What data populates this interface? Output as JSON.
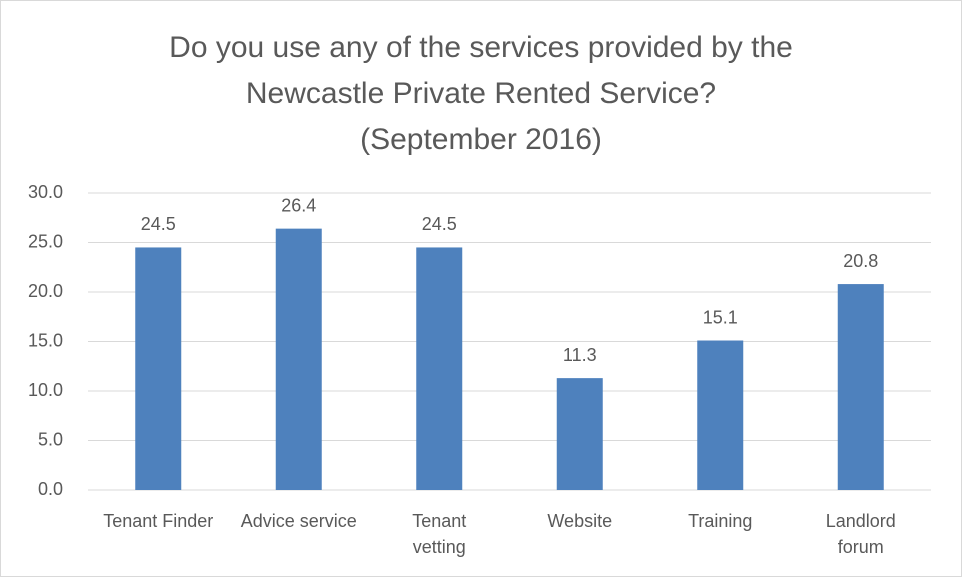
{
  "chart_data": {
    "type": "bar",
    "title": [
      "Do you use any of the services provided by the",
      "Newcastle Private Rented Service?",
      "(September 2016)"
    ],
    "categories": [
      "Tenant Finder",
      "Advice service",
      "Tenant vetting",
      "Website",
      "Training",
      "Landlord forum"
    ],
    "values": [
      24.5,
      26.4,
      24.5,
      11.3,
      15.1,
      20.8
    ],
    "color": "#4e81bd",
    "ylim": [
      0,
      30
    ],
    "yticks": [
      {
        "value": 0,
        "label": "0.0"
      },
      {
        "value": 5,
        "label": "5.0"
      },
      {
        "value": 10,
        "label": "10.0"
      },
      {
        "value": 15,
        "label": "15.0"
      },
      {
        "value": 20,
        "label": "20.0"
      },
      {
        "value": 25,
        "label": "25.0"
      },
      {
        "value": 30,
        "label": "30.0"
      }
    ],
    "grid": true
  }
}
